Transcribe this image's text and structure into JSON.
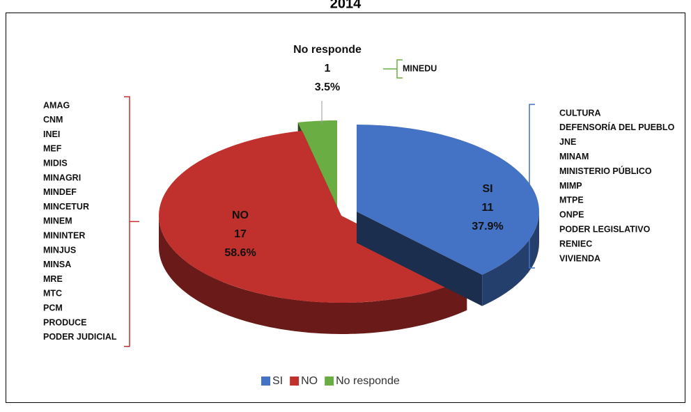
{
  "chart_data": {
    "type": "pie",
    "title": "2014",
    "categories": [
      "SI",
      "NO",
      "No responde"
    ],
    "values": [
      11,
      17,
      1
    ],
    "percent_labels": [
      "37.9%",
      "58.6%",
      "3.5%"
    ],
    "colors": [
      "#4472c4",
      "#c0302c",
      "#6aad42"
    ],
    "members": [
      [
        "CULTURA",
        "DEFENSORÍA DEL PUEBLO",
        "JNE",
        "MINAM",
        "MINISTERIO PÚBLICO",
        "MIMP",
        "MTPE",
        "ONPE",
        "PODER LEGISLATIVO",
        "RENIEC",
        "VIVIENDA"
      ],
      [
        "AMAG",
        "CNM",
        "INEI",
        "MEF",
        "MIDIS",
        "MINAGRI",
        "MINDEF",
        "MINCETUR",
        "MINEM",
        "MININTER",
        "MINJUS",
        "MINSA",
        "MRE",
        "MTC",
        "PCM",
        "PRODUCE",
        "PODER JUDICIAL"
      ],
      [
        "MINEDU"
      ]
    ],
    "legend": "bottom"
  }
}
